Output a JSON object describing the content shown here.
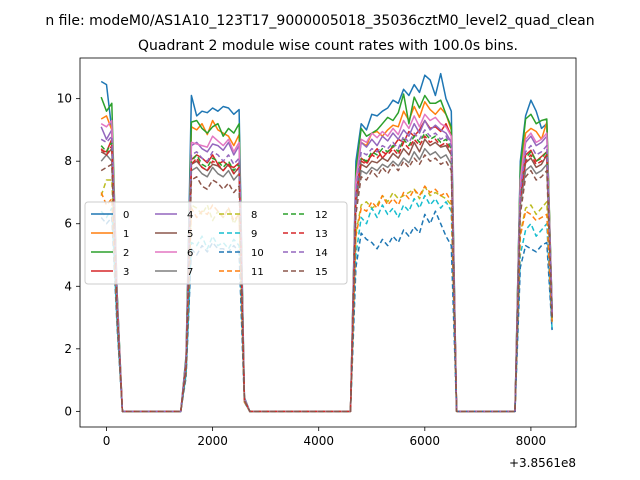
{
  "figure": {
    "suptitle": "n file: modeM0/AS1A10_123T17_9000005018_35036cztM0_level2_quad_clean",
    "title": "Quadrant 2 module wise count rates with 100.0s bins.",
    "x_offset_label": "+3.8561e8"
  },
  "chart_data": {
    "type": "line",
    "title": "Quadrant 2 module wise count rates with 100.0s bins.",
    "xlabel": "",
    "ylabel": "",
    "x_offset": "+3.8561e8",
    "xlim": [
      -500,
      8850
    ],
    "ylim": [
      -0.5,
      11.3
    ],
    "xticks": [
      0,
      2000,
      4000,
      6000,
      8000
    ],
    "xtick_labels": [
      "0",
      "2000",
      "4000",
      "6000",
      "8000"
    ],
    "yticks": [
      0,
      2,
      4,
      6,
      8,
      10
    ],
    "ytick_labels": [
      "0",
      "2",
      "4",
      "6",
      "8",
      "10"
    ],
    "grid": false,
    "legend": {
      "placement": "center-left",
      "columns": 4
    },
    "x": [
      -100,
      0,
      100,
      200,
      300,
      1400,
      1500,
      1600,
      1700,
      1800,
      1900,
      2000,
      2100,
      2200,
      2300,
      2400,
      2500,
      2600,
      2700,
      4600,
      4700,
      4800,
      4900,
      5000,
      5100,
      5200,
      5300,
      5400,
      5500,
      5600,
      5700,
      5800,
      5900,
      6000,
      6100,
      6200,
      6300,
      6400,
      6500,
      6600,
      7700,
      7800,
      7900,
      8000,
      8100,
      8200,
      8300,
      8400
    ],
    "series": [
      {
        "name": "0",
        "color": "#1f77b4",
        "dash": "",
        "values": [
          10.55,
          10.45,
          9.0,
          3.8,
          0,
          0,
          1.8,
          10.1,
          9.45,
          9.6,
          9.55,
          9.7,
          9.6,
          9.75,
          9.7,
          9.5,
          9.65,
          0.45,
          0,
          0,
          8.0,
          9.2,
          9.0,
          9.5,
          9.45,
          9.6,
          9.7,
          9.95,
          9.85,
          10.3,
          10.1,
          10.45,
          10.2,
          10.75,
          10.6,
          10.1,
          10.8,
          10.0,
          9.6,
          0,
          0,
          8.0,
          9.45,
          9.95,
          9.6,
          9.05,
          9.2,
          3.3
        ]
      },
      {
        "name": "1",
        "color": "#ff7f0e",
        "dash": "",
        "values": [
          9.35,
          9.45,
          9.0,
          3.6,
          0,
          0,
          1.7,
          9.1,
          9.0,
          9.2,
          8.85,
          9.3,
          9.0,
          8.9,
          8.8,
          8.5,
          8.85,
          0.4,
          0,
          0,
          7.6,
          8.6,
          8.5,
          8.9,
          8.95,
          8.8,
          9.0,
          9.15,
          9.1,
          9.6,
          9.3,
          9.75,
          9.4,
          9.9,
          9.65,
          9.5,
          9.7,
          9.5,
          9.0,
          0,
          0,
          7.6,
          8.9,
          9.05,
          8.95,
          8.7,
          9.25,
          3.2
        ]
      },
      {
        "name": "2",
        "color": "#2ca02c",
        "dash": "",
        "values": [
          10.05,
          9.6,
          9.85,
          3.8,
          0,
          0,
          1.7,
          9.25,
          9.3,
          9.05,
          8.9,
          9.1,
          9.2,
          8.8,
          9.05,
          8.9,
          9.2,
          0.4,
          0,
          0,
          7.7,
          9.05,
          8.8,
          8.9,
          9.0,
          9.2,
          9.4,
          9.3,
          9.55,
          10.15,
          9.2,
          10.05,
          9.7,
          10.1,
          9.85,
          9.85,
          9.95,
          9.5,
          9.1,
          0,
          0,
          7.8,
          9.35,
          9.5,
          9.2,
          9.3,
          9.35,
          3.3
        ]
      },
      {
        "name": "3",
        "color": "#d62728",
        "dash": "",
        "values": [
          8.35,
          8.3,
          8.7,
          3.4,
          0,
          0,
          1.5,
          8.05,
          8.2,
          8.1,
          7.95,
          8.2,
          7.9,
          8.0,
          7.85,
          7.8,
          7.95,
          0.35,
          0,
          0,
          6.9,
          8.1,
          7.95,
          8.2,
          8.4,
          8.1,
          8.3,
          8.45,
          8.7,
          8.6,
          8.95,
          8.8,
          9.0,
          9.3,
          9.05,
          9.1,
          8.95,
          9.2,
          8.8,
          0,
          0,
          6.9,
          8.2,
          8.35,
          8.0,
          8.15,
          8.3,
          3.0
        ]
      },
      {
        "name": "4",
        "color": "#9467bd",
        "dash": "",
        "values": [
          9.1,
          8.7,
          9.0,
          3.5,
          0,
          0,
          1.6,
          8.5,
          8.6,
          8.4,
          8.3,
          8.55,
          8.5,
          8.35,
          8.6,
          8.2,
          8.5,
          0.4,
          0,
          0,
          7.3,
          8.6,
          8.45,
          8.7,
          8.5,
          8.8,
          8.65,
          8.9,
          8.7,
          9.0,
          8.8,
          9.2,
          8.9,
          9.3,
          9.0,
          9.15,
          9.0,
          8.9,
          8.6,
          0,
          0,
          7.3,
          8.6,
          8.8,
          8.5,
          8.6,
          8.8,
          3.2
        ]
      },
      {
        "name": "5",
        "color": "#8c564b",
        "dash": "",
        "values": [
          8.3,
          8.2,
          8.4,
          3.3,
          0,
          0,
          1.5,
          7.9,
          8.0,
          7.8,
          7.7,
          7.9,
          7.85,
          7.7,
          7.9,
          7.6,
          7.8,
          0.35,
          0,
          0,
          6.8,
          7.9,
          7.8,
          8.0,
          7.95,
          8.1,
          8.0,
          8.25,
          8.1,
          8.4,
          8.2,
          8.6,
          8.3,
          8.7,
          8.5,
          8.6,
          8.45,
          8.5,
          8.2,
          0,
          0,
          6.8,
          7.95,
          8.1,
          7.8,
          7.9,
          8.2,
          3.0
        ]
      },
      {
        "name": "6",
        "color": "#e377c2",
        "dash": "",
        "values": [
          9.2,
          9.1,
          9.3,
          3.6,
          0,
          0,
          1.6,
          8.6,
          8.55,
          8.5,
          8.45,
          8.8,
          8.65,
          8.5,
          8.7,
          8.3,
          8.6,
          0.4,
          0,
          0,
          7.4,
          8.7,
          8.6,
          8.9,
          8.75,
          8.95,
          8.8,
          9.05,
          8.85,
          9.3,
          9.05,
          9.45,
          9.1,
          9.5,
          9.3,
          9.4,
          9.2,
          9.1,
          8.8,
          0,
          0,
          7.4,
          8.7,
          8.9,
          8.6,
          8.7,
          8.9,
          3.2
        ]
      },
      {
        "name": "7",
        "color": "#7f7f7f",
        "dash": "",
        "values": [
          8.0,
          8.2,
          8.0,
          3.2,
          0,
          0,
          1.5,
          7.7,
          7.8,
          7.6,
          7.5,
          7.8,
          7.6,
          7.5,
          7.7,
          7.4,
          7.6,
          0.35,
          0,
          0,
          6.6,
          7.7,
          7.6,
          7.8,
          7.7,
          7.9,
          7.8,
          8.0,
          7.85,
          8.1,
          7.95,
          8.3,
          8.05,
          8.4,
          8.2,
          8.3,
          8.1,
          8.2,
          7.9,
          0,
          0,
          6.6,
          7.7,
          7.85,
          7.6,
          7.7,
          7.9,
          2.9
        ]
      },
      {
        "name": "8",
        "color": "#bcbd22",
        "dash": "5,3",
        "values": [
          6.9,
          7.4,
          7.4,
          3.0,
          0,
          0,
          1.3,
          6.6,
          6.5,
          6.3,
          6.6,
          6.1,
          6.4,
          6.2,
          6.5,
          6.0,
          6.3,
          0.3,
          0,
          0,
          5.7,
          6.6,
          6.7,
          6.5,
          6.6,
          6.9,
          6.7,
          7.0,
          6.8,
          6.9,
          7.0,
          7.1,
          6.8,
          7.2,
          6.9,
          7.0,
          6.9,
          6.8,
          6.6,
          0,
          0,
          5.7,
          6.5,
          6.6,
          6.3,
          6.5,
          6.7,
          2.8
        ]
      },
      {
        "name": "9",
        "color": "#17becf",
        "dash": "5,3",
        "values": [
          6.4,
          6.2,
          6.5,
          2.8,
          0,
          0,
          1.2,
          5.4,
          5.3,
          5.6,
          5.2,
          5.6,
          5.3,
          5.4,
          5.2,
          5.5,
          5.3,
          0.3,
          0,
          0,
          5.0,
          6.2,
          6.0,
          6.5,
          6.2,
          6.6,
          6.3,
          6.5,
          6.2,
          6.6,
          6.4,
          6.8,
          6.5,
          6.9,
          6.6,
          6.8,
          6.5,
          6.7,
          6.4,
          0,
          0,
          5.0,
          5.8,
          6.0,
          5.6,
          5.8,
          6.0,
          2.6
        ]
      },
      {
        "name": "10",
        "color": "#1f77b4",
        "dash": "5,3",
        "values": [
          6.2,
          6.0,
          6.2,
          2.7,
          0,
          0,
          1.1,
          5.2,
          5.0,
          5.3,
          5.1,
          5.4,
          5.2,
          5.2,
          5.1,
          5.3,
          5.1,
          0.3,
          0,
          0,
          4.6,
          5.7,
          5.5,
          5.4,
          5.2,
          5.5,
          5.3,
          5.6,
          5.4,
          5.8,
          5.6,
          5.9,
          5.7,
          6.3,
          6.0,
          6.4,
          6.0,
          5.6,
          5.3,
          0,
          0,
          4.6,
          5.3,
          5.2,
          5.1,
          5.3,
          5.4,
          2.6
        ]
      },
      {
        "name": "11",
        "color": "#ff7f0e",
        "dash": "5,3",
        "values": [
          7.0,
          6.6,
          6.8,
          3.0,
          0,
          0,
          1.3,
          6.5,
          6.2,
          6.4,
          6.3,
          6.6,
          6.4,
          6.2,
          6.5,
          6.1,
          6.3,
          0.3,
          0,
          0,
          5.6,
          6.5,
          6.4,
          6.7,
          6.5,
          6.9,
          6.6,
          6.8,
          6.6,
          7.0,
          6.8,
          7.1,
          6.9,
          7.2,
          7.0,
          7.1,
          6.9,
          7.0,
          6.7,
          0,
          0,
          5.6,
          6.4,
          6.3,
          6.1,
          6.2,
          6.3,
          2.8
        ]
      },
      {
        "name": "12",
        "color": "#2ca02c",
        "dash": "5,3",
        "values": [
          8.5,
          8.3,
          8.6,
          3.3,
          0,
          0,
          1.5,
          8.0,
          8.2,
          7.9,
          7.8,
          8.1,
          8.0,
          7.8,
          8.0,
          7.7,
          7.9,
          0.35,
          0,
          0,
          6.9,
          8.1,
          8.0,
          8.3,
          8.2,
          8.4,
          8.3,
          8.5,
          8.3,
          8.7,
          8.5,
          8.8,
          8.6,
          8.9,
          8.7,
          8.8,
          8.6,
          8.7,
          8.4,
          0,
          0,
          6.9,
          8.1,
          8.3,
          8.0,
          8.1,
          8.3,
          3.0
        ]
      },
      {
        "name": "13",
        "color": "#d62728",
        "dash": "5,3",
        "values": [
          8.4,
          8.2,
          8.5,
          3.3,
          0,
          0,
          1.5,
          7.9,
          8.1,
          7.8,
          7.7,
          8.0,
          7.9,
          7.7,
          7.9,
          7.6,
          7.8,
          0.35,
          0,
          0,
          6.8,
          8.0,
          7.9,
          8.2,
          8.1,
          8.3,
          8.2,
          8.4,
          8.2,
          8.6,
          8.4,
          8.7,
          8.5,
          8.8,
          8.6,
          8.7,
          8.5,
          8.6,
          8.3,
          0,
          0,
          6.8,
          8.0,
          8.2,
          7.9,
          8.0,
          8.2,
          3.0
        ]
      },
      {
        "name": "14",
        "color": "#9467bd",
        "dash": "5,3",
        "values": [
          8.7,
          8.6,
          8.8,
          3.4,
          0,
          0,
          1.6,
          8.2,
          8.3,
          8.1,
          8.0,
          8.3,
          8.2,
          8.0,
          8.2,
          7.9,
          8.1,
          0.35,
          0,
          0,
          7.0,
          8.3,
          8.2,
          8.4,
          8.3,
          8.5,
          8.4,
          8.6,
          8.4,
          8.8,
          8.6,
          8.9,
          8.7,
          9.0,
          8.8,
          8.9,
          8.7,
          8.8,
          8.5,
          0,
          0,
          7.0,
          8.3,
          8.5,
          8.2,
          8.3,
          8.5,
          3.1
        ]
      },
      {
        "name": "15",
        "color": "#8c564b",
        "dash": "5,3",
        "values": [
          7.7,
          7.8,
          7.9,
          3.1,
          0,
          0,
          1.4,
          7.4,
          7.5,
          7.2,
          7.1,
          7.4,
          7.3,
          7.1,
          7.3,
          7.0,
          7.2,
          0.35,
          0,
          0,
          6.3,
          7.5,
          7.4,
          7.7,
          7.5,
          7.8,
          7.6,
          7.9,
          7.7,
          8.0,
          7.8,
          8.1,
          7.9,
          8.2,
          8.0,
          8.1,
          7.9,
          8.0,
          7.7,
          0,
          0,
          6.3,
          7.5,
          7.7,
          7.4,
          7.5,
          7.7,
          2.9
        ]
      }
    ]
  }
}
